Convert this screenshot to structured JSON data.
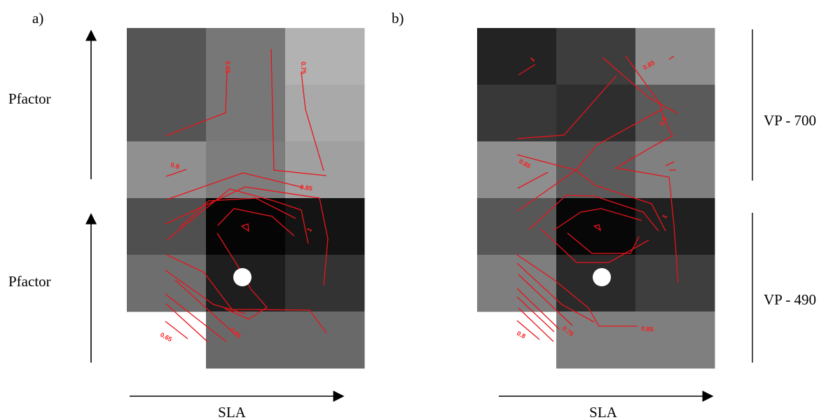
{
  "figure": {
    "panel_a_label": "a)",
    "panel_b_label": "b)",
    "y_label_top": "Pfactor",
    "y_label_bottom": "Pfactor",
    "x_label_a": "SLA",
    "x_label_b": "SLA",
    "right_label_top": "VP - 700",
    "right_label_bottom": "VP - 490"
  },
  "chart_data": [
    {
      "type": "heatmap",
      "panel": "a)",
      "xlabel": "SLA",
      "ylabel": "Pfactor",
      "cmap": "grayscale",
      "cells": [
        [
          "#555555",
          "#777777",
          "#b2b2b2"
        ],
        [
          "#555555",
          "#777777",
          "#a9a9a9"
        ],
        [
          "#909090",
          "#7d7d7d",
          "#a0a0a0"
        ],
        [
          "#4f4f4f",
          "#050505",
          "#141414"
        ],
        [
          "#6e6e6e",
          "#1e1e1e",
          "#333333"
        ],
        [
          "#ffffff",
          "#696969",
          "#696969"
        ]
      ],
      "contour_labels": [
        "0.65",
        "0.75",
        "0.8",
        "0.85",
        "1",
        "0.65",
        "0.85"
      ],
      "marker": "white-circle"
    },
    {
      "type": "heatmap",
      "panel": "b)",
      "xlabel": "SLA",
      "cmap": "grayscale",
      "cells": [
        [
          "#232323",
          "#3d3d3d",
          "#8e8e8e"
        ],
        [
          "#383838",
          "#2e2e2e",
          "#5a5a5a"
        ],
        [
          "#8e8e8e",
          "#5b5b5b",
          "#808080"
        ],
        [
          "#575757",
          "#070707",
          "#202020"
        ],
        [
          "#7e7e7e",
          "#2a2a2a",
          "#3e3e3e"
        ],
        [
          "#ffffff",
          "#7f7f7f",
          "#7f7f7f"
        ]
      ],
      "contour_labels": [
        "1",
        "0.85",
        "0.9",
        "0.85",
        "1",
        "0.8",
        "0.75",
        "0.85"
      ],
      "marker": "white-circle",
      "right_annotations": [
        "VP - 700",
        "VP - 490"
      ]
    }
  ]
}
